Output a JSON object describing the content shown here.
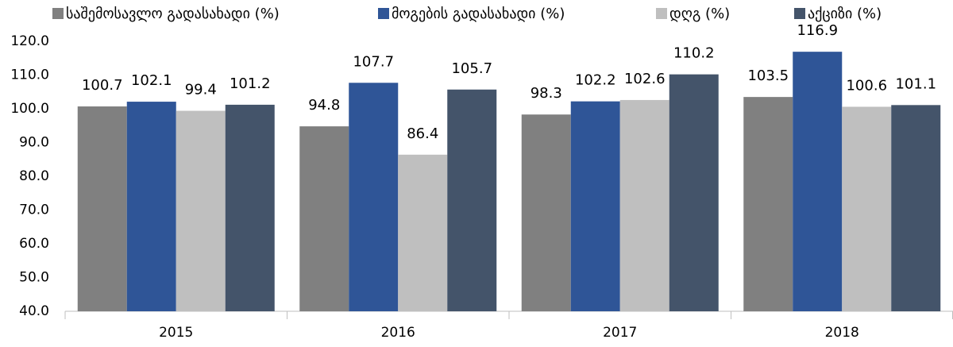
{
  "chart_data": {
    "type": "bar",
    "categories": [
      "2015",
      "2016",
      "2017",
      "2018"
    ],
    "series": [
      {
        "name": "საშემოსავლო გადასახადი (%)",
        "color": "#808080",
        "values": [
          100.7,
          94.8,
          98.3,
          103.5
        ]
      },
      {
        "name": "მოგების გადასახადი (%)",
        "color": "#2f5597",
        "values": [
          102.1,
          107.7,
          102.2,
          116.9
        ]
      },
      {
        "name": "დღგ (%)",
        "color": "#bfbfbf",
        "values": [
          99.4,
          86.4,
          102.6,
          100.6
        ]
      },
      {
        "name": "აქციზი (%)",
        "color": "#44546a",
        "values": [
          101.2,
          105.7,
          110.2,
          101.1
        ]
      }
    ],
    "ylim": [
      40,
      120
    ],
    "yticks": [
      {
        "value": 40,
        "label": "40.0"
      },
      {
        "value": 50,
        "label": "50.0"
      },
      {
        "value": 60,
        "label": "60.0"
      },
      {
        "value": 70,
        "label": "70.0"
      },
      {
        "value": 80,
        "label": "80.0"
      },
      {
        "value": 90,
        "label": "90.0"
      },
      {
        "value": 100,
        "label": "100.0"
      },
      {
        "value": 110,
        "label": "110.0"
      },
      {
        "value": 120,
        "label": "120.0"
      }
    ],
    "grid": false,
    "legend": "top"
  }
}
